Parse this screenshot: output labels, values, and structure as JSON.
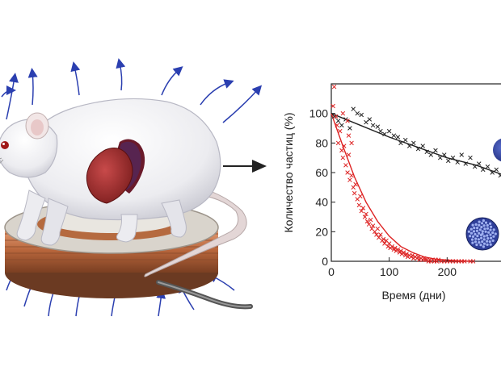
{
  "figure": {
    "arrow_icon": "right-arrow-icon",
    "illustration_icons": [
      "rat-icon",
      "heart-icon",
      "coil-icon",
      "magnetic-field-line-icon"
    ]
  },
  "chart_data": {
    "type": "scatter",
    "title": "",
    "xlabel": "Время (дни)",
    "ylabel": "Количество частиц (%)",
    "xlim": [
      0,
      300
    ],
    "ylim": [
      0,
      120
    ],
    "xticks": [
      "0",
      "100",
      "200"
    ],
    "yticks": [
      "0",
      "20",
      "40",
      "60",
      "80",
      "100"
    ],
    "grid": false,
    "legend": "none",
    "series": [
      {
        "color": "#222222",
        "marker": "x",
        "points": [
          [
            5,
            98
          ],
          [
            12,
            95
          ],
          [
            18,
            92
          ],
          [
            25,
            96
          ],
          [
            32,
            90
          ],
          [
            38,
            103
          ],
          [
            45,
            100
          ],
          [
            52,
            99
          ],
          [
            60,
            94
          ],
          [
            66,
            96
          ],
          [
            72,
            92
          ],
          [
            80,
            91
          ],
          [
            85,
            88
          ],
          [
            92,
            86
          ],
          [
            100,
            88
          ],
          [
            108,
            85
          ],
          [
            115,
            84
          ],
          [
            120,
            80
          ],
          [
            128,
            82
          ],
          [
            135,
            78
          ],
          [
            142,
            80
          ],
          [
            150,
            76
          ],
          [
            158,
            78
          ],
          [
            165,
            74
          ],
          [
            172,
            72
          ],
          [
            180,
            75
          ],
          [
            188,
            70
          ],
          [
            195,
            72
          ],
          [
            202,
            68
          ],
          [
            210,
            70
          ],
          [
            218,
            67
          ],
          [
            225,
            72
          ],
          [
            232,
            66
          ],
          [
            240,
            70
          ],
          [
            248,
            64
          ],
          [
            255,
            66
          ],
          [
            262,
            62
          ],
          [
            270,
            64
          ],
          [
            278,
            60
          ],
          [
            285,
            62
          ],
          [
            292,
            58
          ]
        ],
        "fit": [
          [
            0,
            100
          ],
          [
            50,
            92
          ],
          [
            100,
            84
          ],
          [
            150,
            77
          ],
          [
            200,
            70
          ],
          [
            250,
            65
          ],
          [
            300,
            58
          ]
        ],
        "fit_color": "#222222"
      },
      {
        "color": "#dd2222",
        "marker": "x",
        "points": [
          [
            3,
            105
          ],
          [
            5,
            118
          ],
          [
            8,
            98
          ],
          [
            10,
            92
          ],
          [
            12,
            80
          ],
          [
            15,
            88
          ],
          [
            18,
            75
          ],
          [
            20,
            70
          ],
          [
            22,
            78
          ],
          [
            25,
            65
          ],
          [
            28,
            60
          ],
          [
            30,
            72
          ],
          [
            32,
            55
          ],
          [
            35,
            58
          ],
          [
            38,
            50
          ],
          [
            40,
            46
          ],
          [
            42,
            52
          ],
          [
            45,
            42
          ],
          [
            48,
            38
          ],
          [
            50,
            44
          ],
          [
            52,
            34
          ],
          [
            55,
            36
          ],
          [
            58,
            30
          ],
          [
            60,
            32
          ],
          [
            62,
            27
          ],
          [
            65,
            25
          ],
          [
            68,
            28
          ],
          [
            70,
            22
          ],
          [
            72,
            24
          ],
          [
            75,
            20
          ],
          [
            78,
            18
          ],
          [
            80,
            22
          ],
          [
            82,
            16
          ],
          [
            85,
            18
          ],
          [
            88,
            14
          ],
          [
            90,
            15
          ],
          [
            92,
            12
          ],
          [
            95,
            14
          ],
          [
            98,
            10
          ],
          [
            100,
            12
          ],
          [
            102,
            9
          ],
          [
            105,
            10
          ],
          [
            108,
            8
          ],
          [
            110,
            9
          ],
          [
            112,
            7
          ],
          [
            115,
            8
          ],
          [
            118,
            6
          ],
          [
            120,
            7
          ],
          [
            122,
            5
          ],
          [
            125,
            6
          ],
          [
            128,
            4
          ],
          [
            130,
            5
          ],
          [
            132,
            3
          ],
          [
            135,
            4
          ],
          [
            138,
            3
          ],
          [
            140,
            4
          ],
          [
            142,
            2
          ],
          [
            145,
            3
          ],
          [
            148,
            2
          ],
          [
            150,
            3
          ],
          [
            152,
            1
          ],
          [
            155,
            2
          ],
          [
            158,
            1
          ],
          [
            160,
            2
          ],
          [
            162,
            1
          ],
          [
            165,
            1
          ],
          [
            168,
            0
          ],
          [
            170,
            1
          ],
          [
            172,
            0
          ],
          [
            175,
            1
          ],
          [
            178,
            0
          ],
          [
            180,
            1
          ],
          [
            182,
            0
          ],
          [
            185,
            1
          ],
          [
            190,
            0
          ],
          [
            195,
            0
          ],
          [
            200,
            0
          ],
          [
            205,
            0
          ],
          [
            210,
            0
          ],
          [
            215,
            0
          ],
          [
            220,
            0
          ],
          [
            225,
            0
          ],
          [
            230,
            0
          ],
          [
            240,
            0
          ],
          [
            245,
            0
          ],
          [
            20,
            100
          ],
          [
            28,
            95
          ],
          [
            30,
            85
          ],
          [
            35,
            80
          ]
        ],
        "fit": [
          [
            0,
            100
          ],
          [
            20,
            78
          ],
          [
            40,
            57
          ],
          [
            60,
            40
          ],
          [
            80,
            27
          ],
          [
            100,
            17
          ],
          [
            120,
            10
          ],
          [
            140,
            6
          ],
          [
            160,
            3
          ],
          [
            180,
            1.5
          ],
          [
            200,
            0.8
          ],
          [
            220,
            0.3
          ],
          [
            240,
            0
          ]
        ],
        "fit_color": "#dd2222"
      }
    ],
    "insets": [
      "large-nanoparticle-icon",
      "cluster-nanoparticle-icon"
    ]
  }
}
